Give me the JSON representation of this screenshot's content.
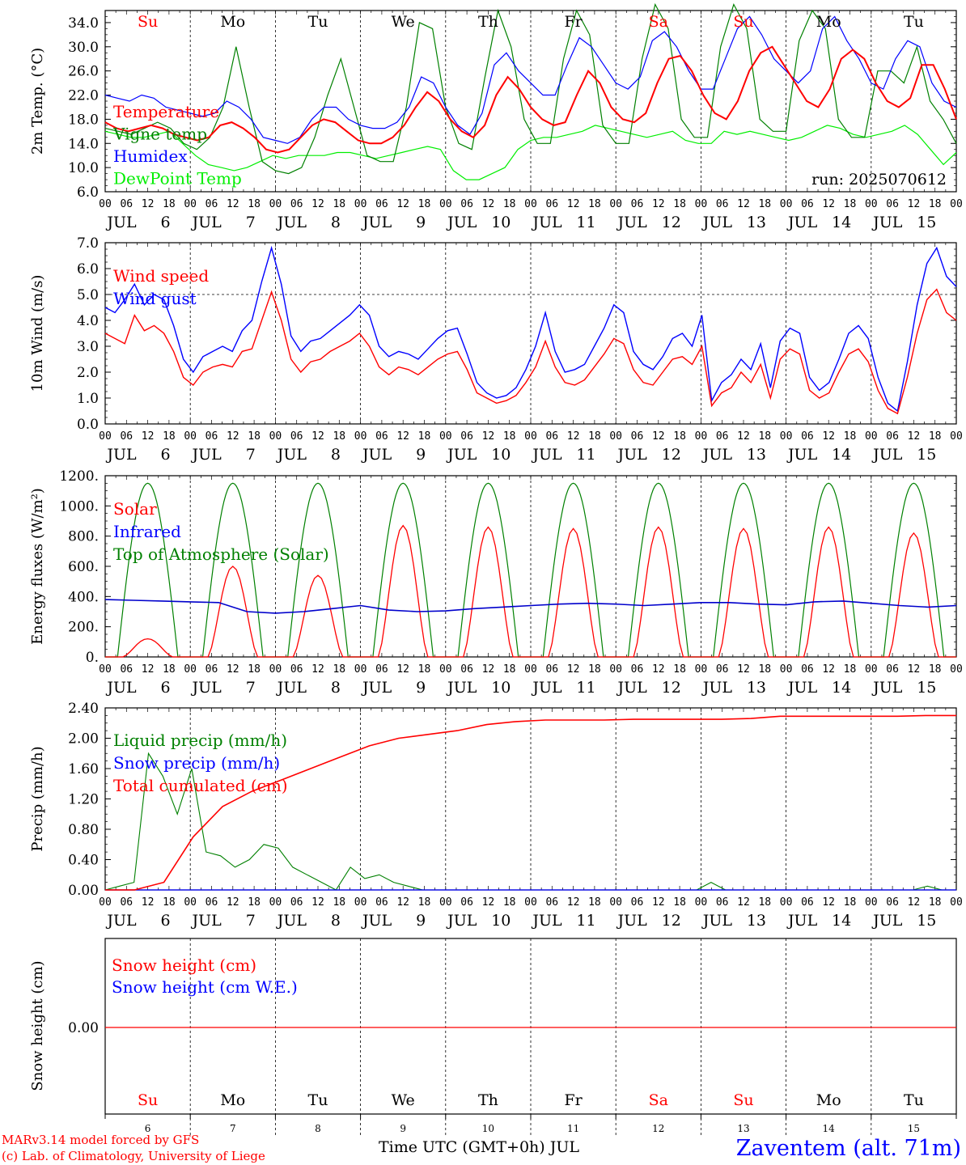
{
  "meteogram": {
    "run_label": "run: 2025070612",
    "model_credit": "MARv3.14 model forced by GFS",
    "lab_credit": "(c) Lab. of Climatology, University of Liege",
    "time_axis_label": "Time UTC (GMT+0h) JUL",
    "station_label": "Zaventem (alt. 71m)",
    "weekdays": [
      "Su",
      "Mo",
      "Tu",
      "We",
      "Th",
      "Fr",
      "Sa",
      "Su",
      "Mo",
      "Tu"
    ],
    "weekend_flags": [
      true,
      false,
      false,
      false,
      false,
      false,
      true,
      true,
      false,
      false
    ],
    "day_numbers": [
      "6",
      "7",
      "8",
      "9",
      "10",
      "11",
      "12",
      "13",
      "14",
      "15"
    ],
    "month": "JUL",
    "hour_ticks": [
      "00",
      "06",
      "12",
      "18"
    ],
    "hour_tick_end": "00",
    "colors": {
      "red": "#ff0000",
      "green": "#008000",
      "blue": "#0000ff",
      "lightgreen": "#00ee00",
      "darkblue": "#0000cc"
    }
  },
  "chart_data": [
    {
      "type": "line",
      "name": "temperature",
      "ylabel": "2m Temp. (°C)",
      "ylim": [
        6,
        36
      ],
      "yticks": [
        "6.0",
        "10.0",
        "14.0",
        "18.0",
        "22.0",
        "26.0",
        "30.0",
        "34.0"
      ],
      "ytick_values": [
        6,
        10,
        14,
        18,
        22,
        26,
        30,
        34
      ],
      "x_hours": [
        0,
        3,
        6,
        9,
        12,
        15,
        18,
        21,
        24,
        27,
        30,
        33,
        36,
        39,
        42,
        45,
        48,
        51,
        54,
        57,
        60,
        63,
        66,
        69,
        72,
        75,
        78,
        81,
        84,
        87,
        90,
        93,
        96,
        99,
        102,
        105,
        108,
        111,
        114,
        117,
        120,
        123,
        126,
        129,
        132,
        135,
        138,
        141,
        144,
        147,
        150,
        153,
        156,
        159,
        162,
        165,
        168,
        171,
        174,
        177,
        180,
        183,
        186,
        189,
        192,
        195,
        198,
        201,
        204,
        207,
        210,
        213,
        216,
        219,
        222,
        225,
        228,
        231,
        234,
        237,
        240
      ],
      "series": [
        {
          "name": "Temperature",
          "color": "red",
          "values": [
            17.5,
            16.5,
            16,
            16.5,
            17,
            16.5,
            15.5,
            15,
            14.5,
            15,
            17,
            17.5,
            16.5,
            15,
            13,
            12.5,
            13,
            15,
            17,
            18,
            17.5,
            16,
            14.5,
            14,
            14,
            15,
            17,
            20,
            22.5,
            21,
            18,
            16,
            15,
            17,
            22,
            25,
            23,
            20,
            18,
            17,
            17.5,
            22,
            26,
            24,
            20,
            18,
            17.5,
            19,
            24,
            28,
            28.5,
            26,
            22,
            19,
            18,
            21,
            26,
            29,
            30,
            27,
            24,
            21,
            20,
            23,
            28,
            29.5,
            28,
            24,
            21,
            20,
            21.5,
            27,
            27,
            23,
            18
          ]
        },
        {
          "name": "Vigne temp",
          "color": "green",
          "values": [
            16.5,
            16,
            15.5,
            16.5,
            17.5,
            16.5,
            14,
            13,
            15,
            20,
            30,
            20,
            11,
            9.5,
            9,
            10,
            15,
            22,
            28,
            20,
            12,
            11,
            11,
            20,
            34,
            33,
            20,
            14,
            13,
            25,
            36,
            30,
            18,
            14,
            14,
            28,
            36,
            32,
            17,
            14,
            14,
            28,
            37,
            33,
            18,
            15,
            15,
            30,
            37,
            33,
            18,
            16,
            16,
            31,
            36,
            33,
            18,
            15,
            15,
            26,
            26,
            24,
            30,
            21,
            18,
            14
          ]
        },
        {
          "name": "Humidex",
          "color": "blue",
          "values": [
            22,
            21.5,
            21,
            22,
            21.5,
            20,
            19.5,
            19,
            18.5,
            19,
            21,
            20,
            18,
            15,
            14.5,
            14,
            15,
            18,
            20,
            20,
            18,
            17,
            16.5,
            16.5,
            17.5,
            20,
            25,
            24,
            20,
            17,
            15.5,
            19,
            27,
            29,
            26,
            24,
            22,
            22,
            27,
            31.5,
            30,
            27,
            24,
            23,
            25,
            31,
            32.5,
            30,
            26,
            23,
            23,
            28,
            33,
            35,
            32,
            28,
            26,
            24,
            26,
            33,
            35,
            31,
            28,
            24,
            23,
            28,
            31,
            30,
            24,
            21,
            20
          ]
        },
        {
          "name": "DewPoint Temp",
          "color": "lightgreen",
          "values": [
            16,
            15.5,
            15,
            15,
            15.5,
            16,
            14,
            12,
            10.5,
            10,
            9.5,
            10,
            11,
            12,
            11.5,
            12,
            12,
            12,
            12.5,
            12.5,
            12,
            11.5,
            12,
            12.5,
            13,
            13.5,
            13,
            9.5,
            8,
            8,
            9,
            10,
            13,
            14.5,
            15,
            15,
            15.5,
            16,
            17,
            16.5,
            16,
            15.5,
            15,
            15.5,
            16,
            14.5,
            14,
            14,
            16,
            15.5,
            16,
            15.5,
            15,
            14.5,
            15,
            16,
            17,
            16.5,
            15.5,
            15,
            15.5,
            16,
            17,
            15.5,
            13,
            10.5,
            12.5
          ]
        }
      ]
    },
    {
      "type": "line",
      "name": "wind",
      "ylabel": "10m Wind (m/s)",
      "ylim": [
        0,
        7
      ],
      "yticks": [
        "0.0",
        "1.0",
        "2.0",
        "3.0",
        "4.0",
        "5.0",
        "6.0",
        "7.0"
      ],
      "ytick_values": [
        0,
        1,
        2,
        3,
        4,
        5,
        6,
        7
      ],
      "reference_line": 5.0,
      "series": [
        {
          "name": "Wind speed",
          "color": "red",
          "values": [
            3.5,
            3.3,
            3.1,
            4.2,
            3.6,
            3.8,
            3.5,
            2.8,
            1.8,
            1.5,
            2,
            2.2,
            2.3,
            2.2,
            2.8,
            2.9,
            4,
            5.1,
            4,
            2.5,
            2,
            2.4,
            2.5,
            2.8,
            3,
            3.2,
            3.5,
            3,
            2.2,
            1.9,
            2.2,
            2.1,
            1.9,
            2.2,
            2.5,
            2.7,
            2.8,
            2.1,
            1.2,
            1,
            0.8,
            0.9,
            1.1,
            1.6,
            2.2,
            3.2,
            2.2,
            1.6,
            1.5,
            1.7,
            2.2,
            2.7,
            3.3,
            3.1,
            2.1,
            1.6,
            1.5,
            2,
            2.5,
            2.6,
            2.3,
            3,
            0.7,
            1.2,
            1.4,
            2,
            1.6,
            2.3,
            1,
            2.5,
            2.9,
            2.7,
            1.3,
            1,
            1.2,
            2,
            2.7,
            2.9,
            2.4,
            1.3,
            0.6,
            0.4,
            1.8,
            3.5,
            4.8,
            5.2,
            4.3,
            4
          ]
        },
        {
          "name": "Wind gust",
          "color": "blue",
          "values": [
            4.5,
            4.3,
            4.8,
            5.4,
            4.6,
            5,
            4.8,
            3.8,
            2.5,
            2,
            2.6,
            2.8,
            3,
            2.8,
            3.6,
            4,
            5.5,
            6.8,
            5.4,
            3.4,
            2.8,
            3.2,
            3.3,
            3.6,
            3.9,
            4.2,
            4.6,
            4.2,
            3,
            2.6,
            2.8,
            2.7,
            2.5,
            2.9,
            3.3,
            3.6,
            3.7,
            2.7,
            1.6,
            1.2,
            1,
            1.1,
            1.4,
            2.1,
            3,
            4.3,
            2.8,
            2,
            2.1,
            2.3,
            3,
            3.7,
            4.6,
            4.3,
            2.8,
            2.3,
            2.1,
            2.6,
            3.3,
            3.5,
            3,
            4.2,
            0.9,
            1.6,
            1.9,
            2.5,
            2.1,
            3.1,
            1.4,
            3.2,
            3.7,
            3.5,
            1.8,
            1.3,
            1.6,
            2.5,
            3.5,
            3.8,
            3.3,
            1.8,
            0.8,
            0.5,
            2.4,
            4.6,
            6.2,
            6.8,
            5.7,
            5.3
          ]
        }
      ]
    },
    {
      "type": "line",
      "name": "energy",
      "ylabel": "Energy fluxes (W/m²)",
      "ylim": [
        0,
        1200
      ],
      "yticks": [
        "0.",
        "200.",
        "400.",
        "600.",
        "800.",
        "1000.",
        "1200."
      ],
      "ytick_values": [
        0,
        200,
        400,
        600,
        800,
        1000,
        1200
      ],
      "series": [
        {
          "name": "Solar",
          "color": "red",
          "peaks": [
            120,
            600,
            540,
            870,
            860,
            850,
            860,
            850,
            860,
            820
          ]
        },
        {
          "name": "Infrared",
          "color": "blue",
          "values": [
            380,
            375,
            370,
            365,
            360,
            300,
            290,
            300,
            320,
            340,
            310,
            300,
            305,
            320,
            330,
            340,
            350,
            355,
            350,
            340,
            350,
            360,
            360,
            350,
            345,
            365,
            370,
            355,
            340,
            330,
            340
          ]
        },
        {
          "name": "Top of Atmosphere (Solar)",
          "color": "green",
          "peak": 1150
        }
      ]
    },
    {
      "type": "line",
      "name": "precip",
      "ylabel": "Precip (mm/h)",
      "ylim": [
        0,
        2.4
      ],
      "yticks": [
        "0.00",
        "0.40",
        "0.80",
        "1.20",
        "1.60",
        "2.00",
        "2.40"
      ],
      "ytick_values": [
        0,
        0.4,
        0.8,
        1.2,
        1.6,
        2.0,
        2.4
      ],
      "series": [
        {
          "name": "Liquid precip (mm/h)",
          "color": "green",
          "values": [
            0,
            0.05,
            0.1,
            1.8,
            1.5,
            1,
            1.6,
            0.5,
            0.45,
            0.3,
            0.4,
            0.6,
            0.55,
            0.3,
            0.2,
            0.1,
            0,
            0.3,
            0.15,
            0.2,
            0.1,
            0.05,
            0,
            0,
            0,
            0,
            0,
            0,
            0,
            0,
            0,
            0,
            0,
            0,
            0,
            0,
            0,
            0,
            0,
            0,
            0,
            0,
            0.1,
            0,
            0,
            0,
            0,
            0,
            0,
            0,
            0,
            0,
            0,
            0,
            0,
            0,
            0,
            0.05,
            0,
            0
          ]
        },
        {
          "name": "Snow precip (mm/h)",
          "color": "blue",
          "values": [
            0
          ]
        },
        {
          "name": "Total cumulated (cm)",
          "color": "red",
          "values": [
            0,
            0,
            0.1,
            0.7,
            1.1,
            1.3,
            1.45,
            1.6,
            1.75,
            1.9,
            2,
            2.05,
            2.1,
            2.18,
            2.22,
            2.24,
            2.24,
            2.24,
            2.25,
            2.25,
            2.25,
            2.25,
            2.26,
            2.29,
            2.29,
            2.29,
            2.29,
            2.29,
            2.3,
            2.3
          ]
        }
      ]
    },
    {
      "type": "line",
      "name": "snow",
      "ylabel": "Snow height (cm)",
      "yticks": [
        "0.00"
      ],
      "series": [
        {
          "name": "Snow height (cm)",
          "color": "red",
          "values": [
            0,
            0
          ]
        },
        {
          "name": "Snow height (cm W.E.)",
          "color": "blue",
          "values": [
            0,
            0
          ]
        }
      ]
    }
  ]
}
